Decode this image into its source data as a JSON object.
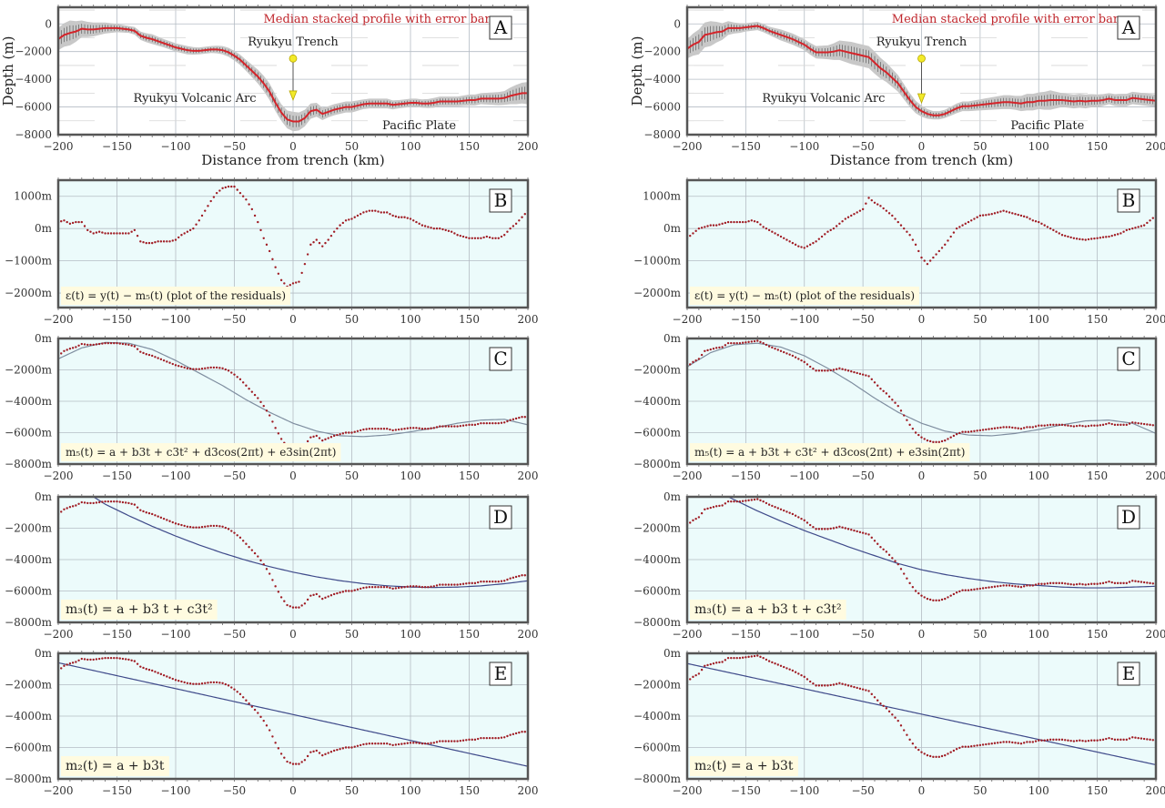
{
  "colors": {
    "panel_background": "#ecfbfb",
    "profile_line": "#d4242a",
    "residual_dots": "#a01c24",
    "error_band": "#c8c8c8",
    "error_bars": "#333333",
    "fit_line_m5": "#7f8ea0",
    "fit_line_m3_m2": "#3f4a8a",
    "trench_marker": "#f2ea2a",
    "title_text": "#c0272d",
    "formula_box": "#fffbe0"
  },
  "chart_data": [
    {
      "type": "line",
      "column": "left",
      "x_axis_label": "Distance from trench (km)",
      "y_axis_label": "Depth (m)",
      "xlim": [
        -200,
        200
      ],
      "x_ticks": [
        -200,
        -150,
        -100,
        -50,
        0,
        50,
        100,
        150,
        200
      ],
      "x_tick_labels": [
        "−200",
        "−150",
        "−100",
        "−50",
        "0",
        "50",
        "100",
        "150",
        "200"
      ],
      "distance_km": [
        -200,
        -195,
        -190,
        -185,
        -180,
        -175,
        -170,
        -165,
        -160,
        -155,
        -150,
        -145,
        -140,
        -135,
        -130,
        -125,
        -120,
        -115,
        -110,
        -105,
        -100,
        -95,
        -90,
        -85,
        -80,
        -75,
        -70,
        -65,
        -60,
        -55,
        -50,
        -45,
        -40,
        -35,
        -30,
        -25,
        -20,
        -15,
        -10,
        -5,
        0,
        5,
        10,
        15,
        20,
        25,
        30,
        35,
        40,
        45,
        50,
        55,
        60,
        65,
        70,
        75,
        80,
        85,
        90,
        95,
        100,
        105,
        110,
        115,
        120,
        125,
        130,
        135,
        140,
        145,
        150,
        155,
        160,
        165,
        170,
        175,
        180,
        185,
        190,
        195,
        200
      ],
      "median_depth_m": [
        -1100,
        -800,
        -650,
        -550,
        -350,
        -400,
        -400,
        -350,
        -300,
        -300,
        -300,
        -350,
        -400,
        -500,
        -850,
        -1000,
        -1100,
        -1250,
        -1400,
        -1550,
        -1700,
        -1800,
        -1900,
        -1950,
        -1950,
        -1900,
        -1850,
        -1850,
        -1900,
        -2050,
        -2300,
        -2600,
        -3000,
        -3400,
        -3800,
        -4300,
        -4900,
        -5700,
        -6400,
        -6900,
        -7050,
        -7050,
        -6800,
        -6300,
        -6200,
        -6500,
        -6350,
        -6200,
        -6100,
        -6000,
        -6000,
        -5900,
        -5800,
        -5750,
        -5750,
        -5750,
        -5750,
        -5850,
        -5800,
        -5750,
        -5700,
        -5700,
        -5750,
        -5750,
        -5700,
        -5600,
        -5600,
        -5600,
        -5600,
        -5550,
        -5500,
        -5500,
        -5400,
        -5400,
        -5400,
        -5400,
        -5350,
        -5200,
        -5100,
        -5000,
        -5000
      ],
      "error_distance_km": [
        -200,
        -190,
        -180,
        -170,
        -160,
        -150,
        -140,
        -130,
        -120,
        -110,
        -100,
        -90,
        -80,
        -70,
        -60,
        -50,
        -40,
        -30,
        -20,
        -10,
        0,
        10,
        20,
        30,
        40,
        50,
        60,
        70,
        80,
        90,
        100,
        110,
        120,
        130,
        140,
        150,
        160,
        170,
        180,
        190,
        200
      ],
      "error_m": [
        800,
        900,
        600,
        500,
        400,
        300,
        250,
        300,
        350,
        300,
        300,
        300,
        250,
        250,
        300,
        350,
        400,
        500,
        600,
        600,
        700,
        600,
        500,
        400,
        400,
        400,
        350,
        350,
        350,
        300,
        300,
        300,
        350,
        350,
        350,
        400,
        400,
        450,
        500,
        700,
        800
      ],
      "residual_m": [
        200,
        250,
        150,
        200,
        200,
        -50,
        -150,
        -100,
        -150,
        -150,
        -150,
        -150,
        -150,
        -50,
        -400,
        -450,
        -450,
        -400,
        -400,
        -400,
        -350,
        -200,
        -100,
        0,
        250,
        550,
        850,
        1100,
        1250,
        1300,
        1300,
        1100,
        900,
        600,
        200,
        -300,
        -700,
        -1200,
        -1600,
        -1800,
        -1700,
        -1650,
        -1100,
        -500,
        -350,
        -550,
        -350,
        -100,
        100,
        250,
        300,
        400,
        500,
        550,
        550,
        500,
        500,
        400,
        350,
        350,
        300,
        200,
        100,
        50,
        0,
        0,
        -50,
        -100,
        -200,
        -250,
        -300,
        -300,
        -300,
        -250,
        -300,
        -300,
        -200,
        0,
        150,
        350,
        550
      ],
      "panels": [
        {
          "letter": "A",
          "title": "Median stacked profile with error bars",
          "annotations": {
            "trench": "Ryukyu Trench",
            "arc": "Ryukyu Volcanic Arc",
            "plate": "Pacific Plate"
          },
          "trench_marker": {
            "distance_km": 0,
            "top_m": -2500,
            "bottom_m": -5500
          },
          "ylim": [
            -8000,
            1200
          ],
          "y_ticks": [
            0,
            -2000,
            -4000,
            -6000,
            -8000
          ],
          "y_tick_labels": [
            "0",
            "−2000",
            "−4000",
            "−6000",
            "−8000"
          ]
        },
        {
          "letter": "B",
          "formula": "ε(t) = y(t) − m₅(t) (plot of the residuals)",
          "ylim": [
            -2450,
            1500
          ],
          "y_ticks": [
            1000,
            0,
            -1000,
            -2000
          ],
          "y_tick_labels": [
            "1000m",
            "0m",
            "−1000m",
            "−2000m"
          ]
        },
        {
          "letter": "C",
          "formula": "m₅(t) = a + b3t + c3t² + d3cos(2πt) + e3sin(2πt)",
          "ylim": [
            -8000,
            0
          ],
          "y_ticks": [
            0,
            -2000,
            -4000,
            -6000,
            -8000
          ],
          "y_tick_labels": [
            "0m",
            "−2000m",
            "−4000m",
            "−6000m",
            "−8000m"
          ],
          "fit": {
            "distance_km": [
              -200,
              -180,
              -160,
              -140,
              -120,
              -100,
              -80,
              -60,
              -40,
              -20,
              0,
              20,
              40,
              60,
              80,
              100,
              120,
              140,
              160,
              180,
              200
            ],
            "depth_m": [
              -1300,
              -600,
              -250,
              -300,
              -700,
              -1400,
              -2200,
              -3000,
              -3900,
              -4700,
              -5400,
              -5900,
              -6200,
              -6250,
              -6150,
              -5950,
              -5700,
              -5400,
              -5200,
              -5150,
              -5500
            ]
          }
        },
        {
          "letter": "D",
          "formula": "m₃(t) = a + b3 t + c3t²",
          "ylim": [
            -8000,
            0
          ],
          "y_ticks": [
            0,
            -2000,
            -4000,
            -6000,
            -8000
          ],
          "y_tick_labels": [
            "0m",
            "−2000m",
            "−4000m",
            "−6000m",
            "−8000m"
          ],
          "fit": {
            "distance_km": [
              -170,
              -160,
              -140,
              -120,
              -100,
              -80,
              -60,
              -40,
              -20,
              0,
              20,
              40,
              60,
              80,
              100,
              120,
              140,
              160,
              180,
              200
            ],
            "depth_m": [
              0,
              -472,
              -1202,
              -1878,
              -2500,
              -3068,
              -3582,
              -4042,
              -4448,
              -4800,
              -5098,
              -5342,
              -5532,
              -5668,
              -5750,
              -5778,
              -5752,
              -5672,
              -5538,
              -5350
            ]
          }
        },
        {
          "letter": "E",
          "formula": "m₂(t) = a + b3t",
          "ylim": [
            -8000,
            0
          ],
          "y_ticks": [
            0,
            -2000,
            -4000,
            -6000,
            -8000
          ],
          "y_tick_labels": [
            "0m",
            "−2000m",
            "−4000m",
            "−6000m",
            "−8000m"
          ],
          "fit": {
            "distance_km": [
              -200,
              200
            ],
            "depth_m": [
              -600,
              -7200
            ]
          }
        }
      ]
    },
    {
      "type": "line",
      "column": "right",
      "x_axis_label": "Distance from trench (km)",
      "y_axis_label": "Depth (m)",
      "xlim": [
        -200,
        200
      ],
      "x_ticks": [
        -200,
        -150,
        -100,
        -50,
        0,
        50,
        100,
        150,
        200
      ],
      "x_tick_labels": [
        "−200",
        "−150",
        "−100",
        "−50",
        "0",
        "50",
        "100",
        "150",
        "200"
      ],
      "distance_km": [
        -200,
        -195,
        -190,
        -185,
        -180,
        -175,
        -170,
        -165,
        -160,
        -155,
        -150,
        -145,
        -140,
        -135,
        -130,
        -125,
        -120,
        -115,
        -110,
        -105,
        -100,
        -95,
        -90,
        -85,
        -80,
        -75,
        -70,
        -65,
        -60,
        -55,
        -50,
        -45,
        -40,
        -35,
        -30,
        -25,
        -20,
        -15,
        -10,
        -5,
        0,
        5,
        10,
        15,
        20,
        25,
        30,
        35,
        40,
        45,
        50,
        55,
        60,
        65,
        70,
        75,
        80,
        85,
        90,
        95,
        100,
        105,
        110,
        115,
        120,
        125,
        130,
        135,
        140,
        145,
        150,
        155,
        160,
        165,
        170,
        175,
        180,
        185,
        190,
        195,
        200
      ],
      "median_depth_m": [
        -1800,
        -1500,
        -1300,
        -800,
        -700,
        -600,
        -550,
        -300,
        -300,
        -300,
        -250,
        -200,
        -150,
        -300,
        -500,
        -650,
        -800,
        -950,
        -1100,
        -1300,
        -1500,
        -1800,
        -2050,
        -2050,
        -2050,
        -2000,
        -1900,
        -2000,
        -2100,
        -2200,
        -2300,
        -2400,
        -2800,
        -3200,
        -3500,
        -3900,
        -4300,
        -4900,
        -5500,
        -6000,
        -6300,
        -6500,
        -6600,
        -6600,
        -6500,
        -6300,
        -6100,
        -5950,
        -5950,
        -5900,
        -5850,
        -5800,
        -5750,
        -5700,
        -5650,
        -5650,
        -5700,
        -5750,
        -5650,
        -5650,
        -5550,
        -5550,
        -5500,
        -5500,
        -5500,
        -5550,
        -5600,
        -5550,
        -5600,
        -5550,
        -5550,
        -5500,
        -5400,
        -5500,
        -5500,
        -5500,
        -5350,
        -5400,
        -5450,
        -5500,
        -5550
      ],
      "error_distance_km": [
        -200,
        -190,
        -180,
        -170,
        -160,
        -150,
        -140,
        -130,
        -120,
        -110,
        -100,
        -90,
        -80,
        -70,
        -60,
        -50,
        -40,
        -30,
        -20,
        -10,
        0,
        10,
        20,
        30,
        40,
        50,
        60,
        70,
        80,
        90,
        100,
        110,
        120,
        130,
        140,
        150,
        160,
        170,
        180,
        190,
        200
      ],
      "error_m": [
        700,
        900,
        900,
        600,
        400,
        300,
        300,
        300,
        400,
        400,
        400,
        450,
        500,
        700,
        800,
        800,
        800,
        700,
        600,
        500,
        400,
        300,
        300,
        350,
        350,
        400,
        450,
        500,
        500,
        600,
        600,
        700,
        500,
        500,
        500,
        450,
        400,
        450,
        450,
        450,
        450
      ],
      "residual_m": [
        -300,
        -150,
        0,
        50,
        100,
        100,
        150,
        200,
        200,
        200,
        200,
        250,
        200,
        50,
        -50,
        -150,
        -250,
        -350,
        -450,
        -550,
        -600,
        -500,
        -400,
        -250,
        -100,
        0,
        150,
        300,
        400,
        500,
        600,
        950,
        800,
        700,
        550,
        400,
        200,
        0,
        -200,
        -500,
        -900,
        -1100,
        -900,
        -700,
        -500,
        -250,
        0,
        100,
        200,
        300,
        400,
        420,
        450,
        500,
        550,
        500,
        450,
        400,
        350,
        250,
        200,
        100,
        0,
        -100,
        -200,
        -250,
        -300,
        -330,
        -350,
        -320,
        -300,
        -270,
        -250,
        -200,
        -150,
        -50,
        0,
        50,
        100,
        250,
        400
      ],
      "panels": [
        {
          "letter": "A",
          "title": "Median stacked profile with error bars",
          "annotations": {
            "trench": "Ryukyu Trench",
            "arc": "Ryukyu Volcanic Arc",
            "plate": "Pacific Plate"
          },
          "trench_marker": {
            "distance_km": 0,
            "top_m": -2500,
            "bottom_m": -5700
          },
          "ylim": [
            -8000,
            1200
          ],
          "y_ticks": [
            0,
            -2000,
            -4000,
            -6000,
            -8000
          ],
          "y_tick_labels": [
            "0",
            "−2000",
            "−4000",
            "−6000",
            "−8000"
          ]
        },
        {
          "letter": "B",
          "formula": "ε(t) = y(t) − m₅(t) (plot of the residuals)",
          "ylim": [
            -2450,
            1500
          ],
          "y_ticks": [
            1000,
            0,
            -1000,
            -2000
          ],
          "y_tick_labels": [
            "1000m",
            "0m",
            "−1000m",
            "−2000m"
          ]
        },
        {
          "letter": "C",
          "formula": "m₅(t) = a + b3t + c3t² + d3cos(2πt) + e3sin(2πt)",
          "ylim": [
            -8000,
            0
          ],
          "y_ticks": [
            0,
            -2000,
            -4000,
            -6000,
            -8000
          ],
          "y_tick_labels": [
            "0m",
            "−2000m",
            "−4000m",
            "−6000m",
            "−8000m"
          ],
          "fit": {
            "distance_km": [
              -200,
              -180,
              -160,
              -140,
              -120,
              -100,
              -80,
              -60,
              -40,
              -20,
              0,
              20,
              40,
              60,
              80,
              100,
              120,
              140,
              160,
              180,
              200
            ],
            "depth_m": [
              -1800,
              -900,
              -400,
              -300,
              -550,
              -1100,
              -1900,
              -2800,
              -3800,
              -4700,
              -5400,
              -5900,
              -6150,
              -6200,
              -6050,
              -5800,
              -5500,
              -5250,
              -5200,
              -5400,
              -6050
            ]
          }
        },
        {
          "letter": "D",
          "formula": "m₃(t) = a + b3 t + c3t²",
          "ylim": [
            -8000,
            0
          ],
          "y_ticks": [
            0,
            -2000,
            -4000,
            -6000,
            -8000
          ],
          "y_tick_labels": [
            "0m",
            "−2000m",
            "−4000m",
            "−6000m",
            "−8000m"
          ],
          "fit": {
            "distance_km": [
              -165,
              -140,
              -120,
              -100,
              -80,
              -60,
              -40,
              -20,
              0,
              20,
              40,
              60,
              80,
              100,
              120,
              140,
              160,
              180,
              200
            ],
            "depth_m": [
              0,
              -900,
              -1550,
              -2150,
              -2700,
              -3250,
              -3750,
              -4250,
              -4650,
              -4950,
              -5200,
              -5400,
              -5550,
              -5650,
              -5750,
              -5800,
              -5800,
              -5750,
              -5700
            ]
          }
        },
        {
          "letter": "E",
          "formula": "m₂(t) = a + b3t",
          "ylim": [
            -8000,
            0
          ],
          "y_ticks": [
            0,
            -2000,
            -4000,
            -6000,
            -8000
          ],
          "y_tick_labels": [
            "0m",
            "−2000m",
            "−4000m",
            "−6000m",
            "−8000m"
          ],
          "fit": {
            "distance_km": [
              -200,
              200
            ],
            "depth_m": [
              -650,
              -7100
            ]
          }
        }
      ]
    }
  ]
}
